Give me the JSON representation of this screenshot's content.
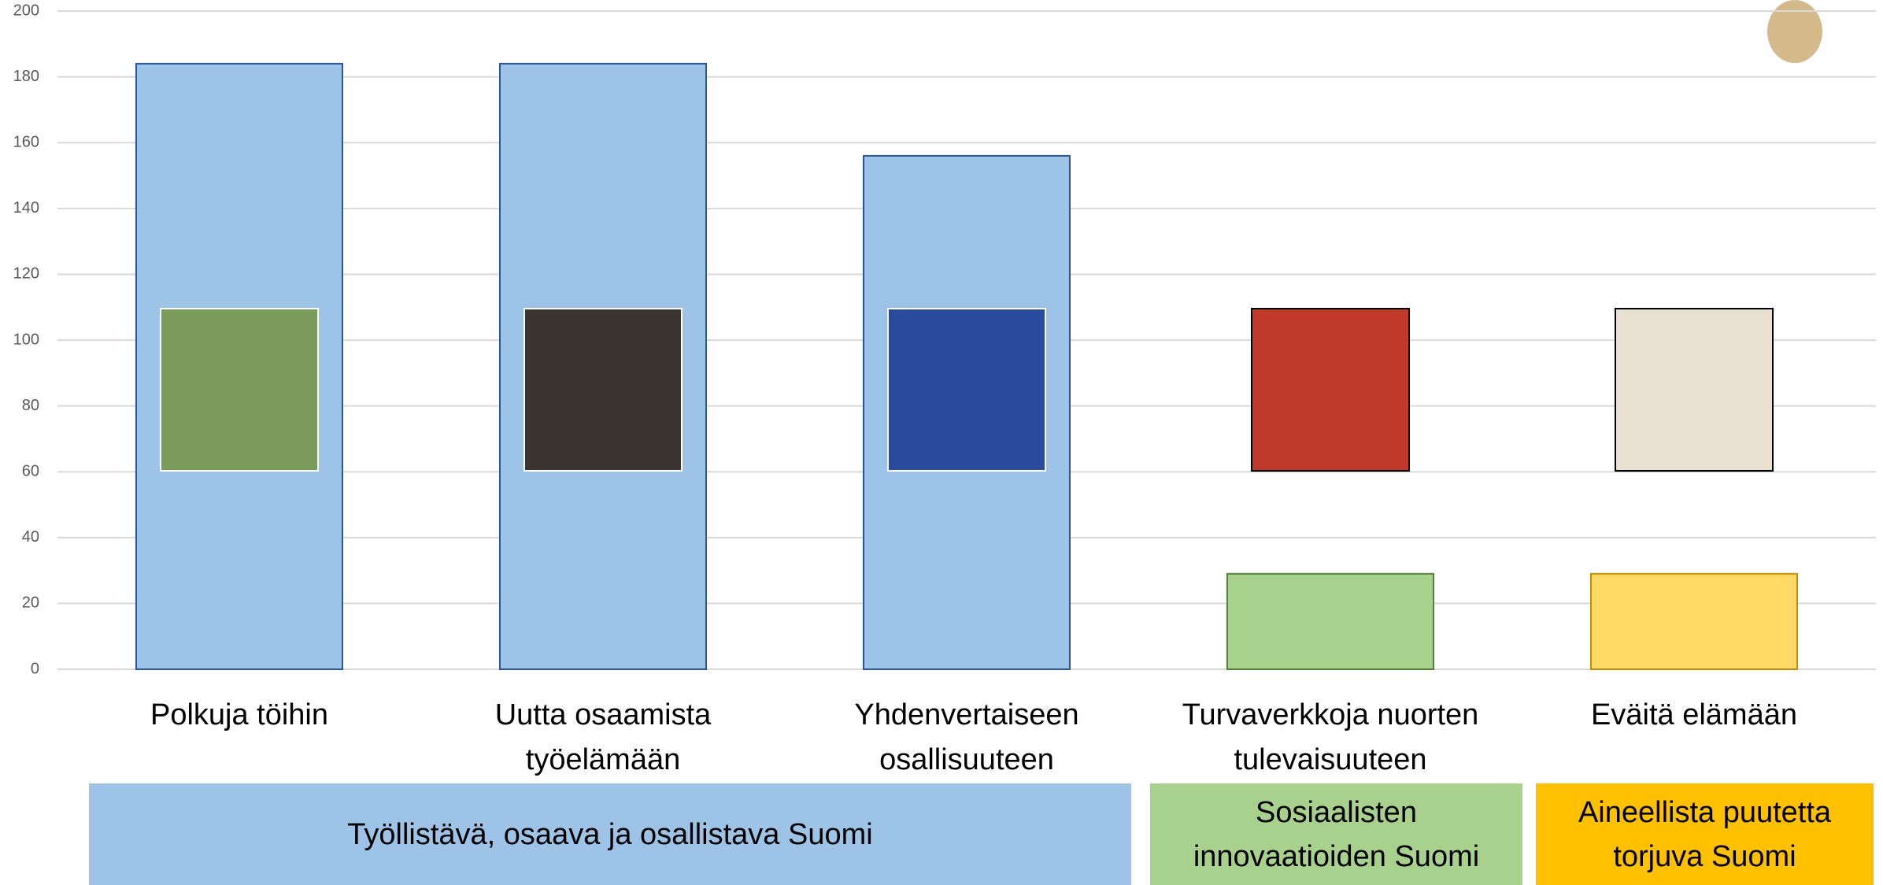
{
  "chart_data": {
    "type": "bar",
    "categories": [
      "Polkuja töihin",
      "Uutta osaamista työelämään",
      "Yhdenvertaiseen osallisuuteen",
      "Turvaverkkoja nuorten tulevaisuuteen",
      "Eväitä elämään"
    ],
    "values": [
      184,
      184,
      156,
      29,
      29
    ],
    "colors": [
      "#9dc3e6",
      "#9dc3e6",
      "#9dc3e6",
      "#a9d18e",
      "#ffd966"
    ],
    "ylim": [
      0,
      200
    ],
    "yticks": [
      0,
      20,
      40,
      60,
      80,
      100,
      120,
      140,
      160,
      180,
      200
    ],
    "grid": true,
    "groups": [
      {
        "label": "Työllistävä, osaava ja osallistava Suomi",
        "color": "#9dc3e6"
      },
      {
        "label": "Sosiaalisten innovaatioiden Suomi",
        "color": "#a9d18e"
      },
      {
        "label": "Aineellista puutetta torjuva Suomi",
        "color": "#ffc000"
      }
    ]
  }
}
